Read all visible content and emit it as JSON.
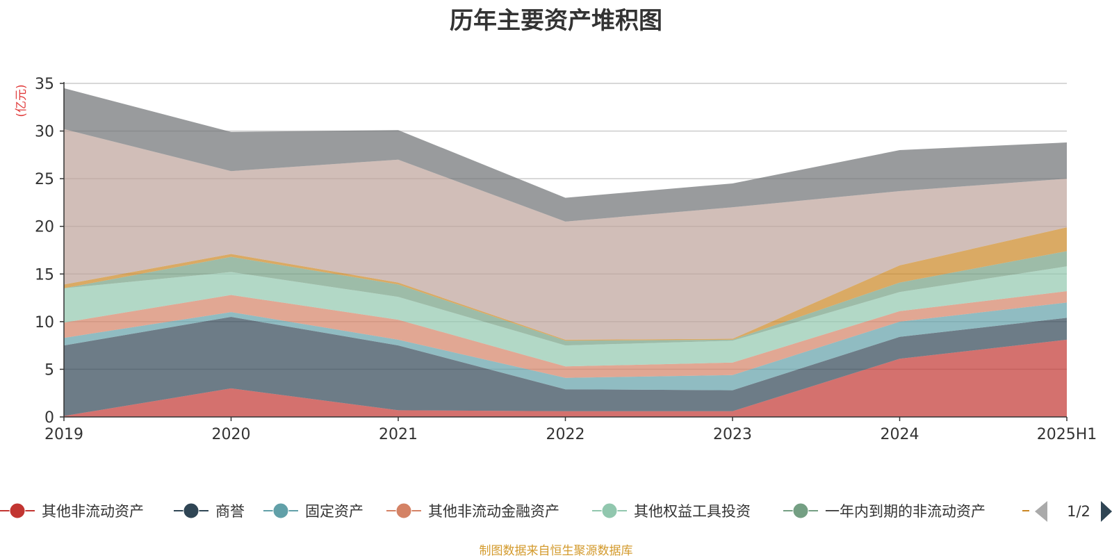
{
  "chart_data": {
    "type": "area",
    "title": "历年主要资产堆积图",
    "unit_label": "(亿元)",
    "stacked": true,
    "categories": [
      "2019",
      "2020",
      "2021",
      "2022",
      "2023",
      "2024",
      "2025H1"
    ],
    "ylim": [
      0,
      35
    ],
    "yticks": [
      0,
      5,
      10,
      15,
      20,
      25,
      30,
      35
    ],
    "grid": true,
    "legend_position": "bottom",
    "series": [
      {
        "name": "其他非流动资产",
        "color": "#c23531",
        "values": [
          0.1,
          3.0,
          0.7,
          0.6,
          0.6,
          6.1,
          8.1
        ]
      },
      {
        "name": "商誉",
        "color": "#2f4554",
        "values": [
          7.4,
          7.5,
          6.8,
          2.3,
          2.2,
          2.3,
          2.3
        ]
      },
      {
        "name": "固定资产",
        "color": "#61a0a8",
        "values": [
          0.8,
          0.5,
          0.6,
          1.2,
          1.6,
          1.6,
          1.6
        ]
      },
      {
        "name": "其他非流动金融资产",
        "color": "#d48265",
        "values": [
          1.6,
          1.8,
          2.1,
          1.2,
          1.3,
          1.1,
          1.2
        ]
      },
      {
        "name": "其他权益工具投资",
        "color": "#91c7ae",
        "values": [
          3.6,
          2.4,
          2.4,
          2.2,
          2.3,
          2.0,
          2.6
        ]
      },
      {
        "name": "一年内到期的非流动资产",
        "color": "#749f83",
        "values": [
          0.0,
          1.6,
          1.3,
          0.5,
          0.1,
          1.0,
          1.6
        ]
      },
      {
        "name": "",
        "color": "#ca8622",
        "values": [
          0.4,
          0.3,
          0.2,
          0.1,
          0.1,
          1.8,
          2.5
        ]
      },
      {
        "name": "",
        "color": "#bda29a",
        "values": [
          16.3,
          8.7,
          12.9,
          12.4,
          13.8,
          7.8,
          5.1
        ]
      },
      {
        "name": "",
        "color": "#6e7074",
        "values": [
          4.3,
          4.1,
          3.1,
          2.5,
          2.5,
          4.3,
          3.8
        ]
      }
    ]
  },
  "legend": {
    "page_indicator": "1/2",
    "visible_count": 7
  },
  "source_note": "制图数据来自恒生聚源数据库"
}
